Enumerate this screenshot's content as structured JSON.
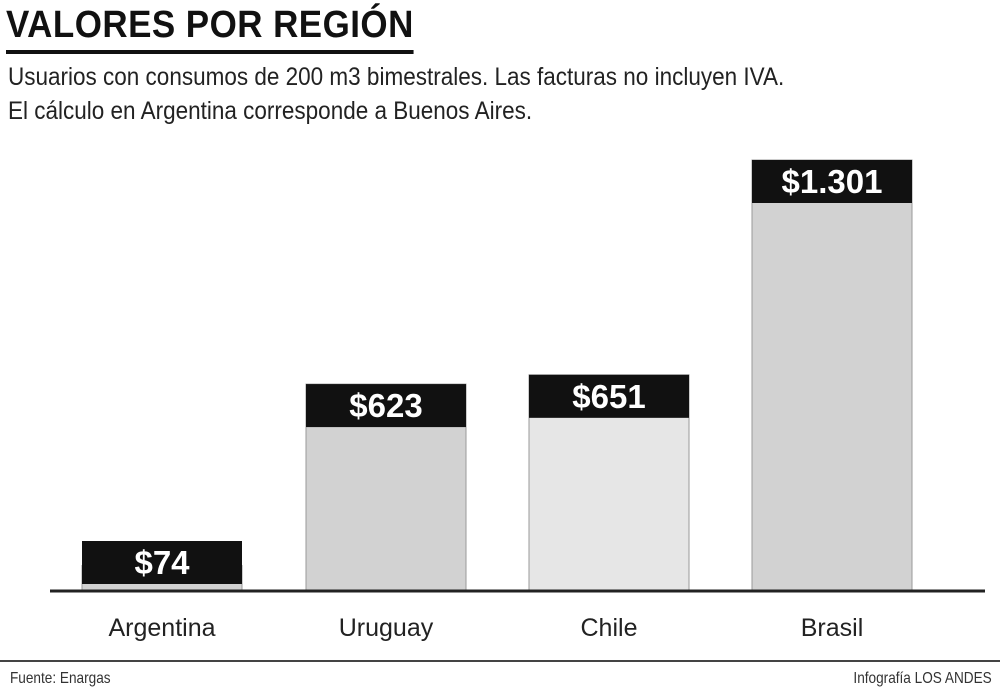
{
  "title": "VALORES POR REGIÓN",
  "subtitle_lines": [
    "Usuarios con consumos de 200 m3 bimestrales. Las facturas no incluyen IVA.",
    "El cálculo en Argentina corresponde a Buenos Aires."
  ],
  "source": "Fuente: Enargas",
  "credit": "Infografía LOS ANDES",
  "colors": {
    "bar_fill": "#d2d2d2",
    "bar_fill_light": "#e6e6e6",
    "bar_edge": "#9a9a9a",
    "label_box": "#111111",
    "label_text": "#ffffff",
    "baseline": "#222222"
  },
  "chart_data": {
    "type": "bar",
    "categories": [
      "Argentina",
      "Uruguay",
      "Chile",
      "Brasil"
    ],
    "values": [
      74,
      623,
      651,
      1301
    ],
    "value_labels": [
      "$74",
      "$623",
      "$651",
      "$1.301"
    ],
    "ylim": [
      0,
      1301
    ],
    "grid": false,
    "legend": "none"
  }
}
